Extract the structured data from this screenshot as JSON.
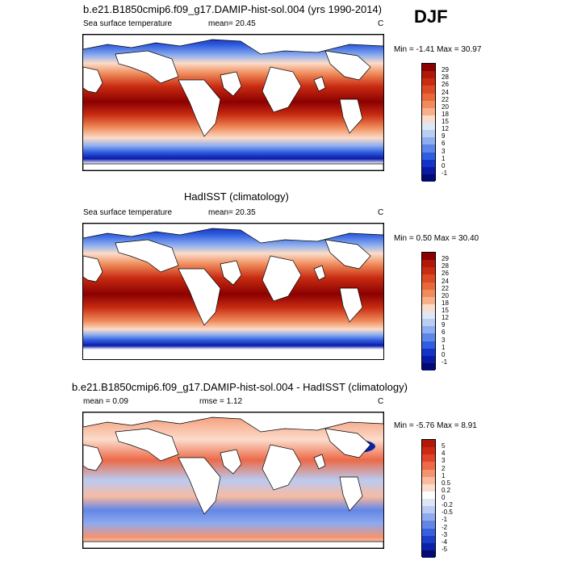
{
  "season": "DJF",
  "panels": [
    {
      "title": "b.e21.B1850cmip6.f09_g17.DAMIP-hist-sol.004 (yrs 1990-2014)",
      "left_label": "Sea surface temperature",
      "center_label": "mean=  20.45",
      "right_label": "C",
      "minmax": "Min =  -1.41 Max =  30.97",
      "colorbar": {
        "labels": [
          "29",
          "28",
          "26",
          "24",
          "22",
          "20",
          "18",
          "15",
          "12",
          "9",
          "6",
          "3",
          "1",
          "0",
          "-1"
        ],
        "colors": [
          "#8b0000",
          "#b01808",
          "#c82c12",
          "#dc4a24",
          "#e8683a",
          "#f08c5c",
          "#f7b08a",
          "#fbdcc8",
          "#dde8f7",
          "#b8cef2",
          "#8eaeef",
          "#5c86e8",
          "#2f5ee0",
          "#1434c8",
          "#0a1aa6",
          "#020b6f"
        ]
      }
    },
    {
      "title": "HadISST (climatology)",
      "left_label": "Sea surface temperature",
      "center_label": "mean=  20.35",
      "right_label": "C",
      "minmax": "Min =   0.50 Max =  30.40",
      "colorbar": {
        "labels": [
          "29",
          "28",
          "26",
          "24",
          "22",
          "20",
          "18",
          "15",
          "12",
          "9",
          "6",
          "3",
          "1",
          "0",
          "-1"
        ],
        "colors": [
          "#8b0000",
          "#b01808",
          "#c82c12",
          "#dc4a24",
          "#e8683a",
          "#f08c5c",
          "#f7b08a",
          "#fbdcc8",
          "#dde8f7",
          "#b8cef2",
          "#8eaeef",
          "#5c86e8",
          "#2f5ee0",
          "#1434c8",
          "#0a1aa6",
          "#020b6f"
        ]
      }
    },
    {
      "title": "b.e21.B1850cmip6.f09_g17.DAMIP-hist-sol.004 - HadISST (climatology)",
      "left_label": "mean =   0.09",
      "center_label": "rmse =   1.12",
      "right_label": "C",
      "minmax": "Min =  -5.76 Max =   8.91",
      "colorbar": {
        "labels": [
          "5",
          "4",
          "3",
          "2",
          "1",
          "0.5",
          "0.2",
          "0",
          "-0.2",
          "-0.5",
          "-1",
          "-2",
          "-3",
          "-4",
          "-5"
        ],
        "colors": [
          "#b01808",
          "#cc2a14",
          "#e04428",
          "#ec6a48",
          "#f4946e",
          "#f9baa0",
          "#fcdccc",
          "#ffffff",
          "#dde6f7",
          "#b9cbf2",
          "#8faaee",
          "#6286e6",
          "#3760dc",
          "#1a3ec8",
          "#0a22a8",
          "#020c74"
        ]
      }
    }
  ]
}
